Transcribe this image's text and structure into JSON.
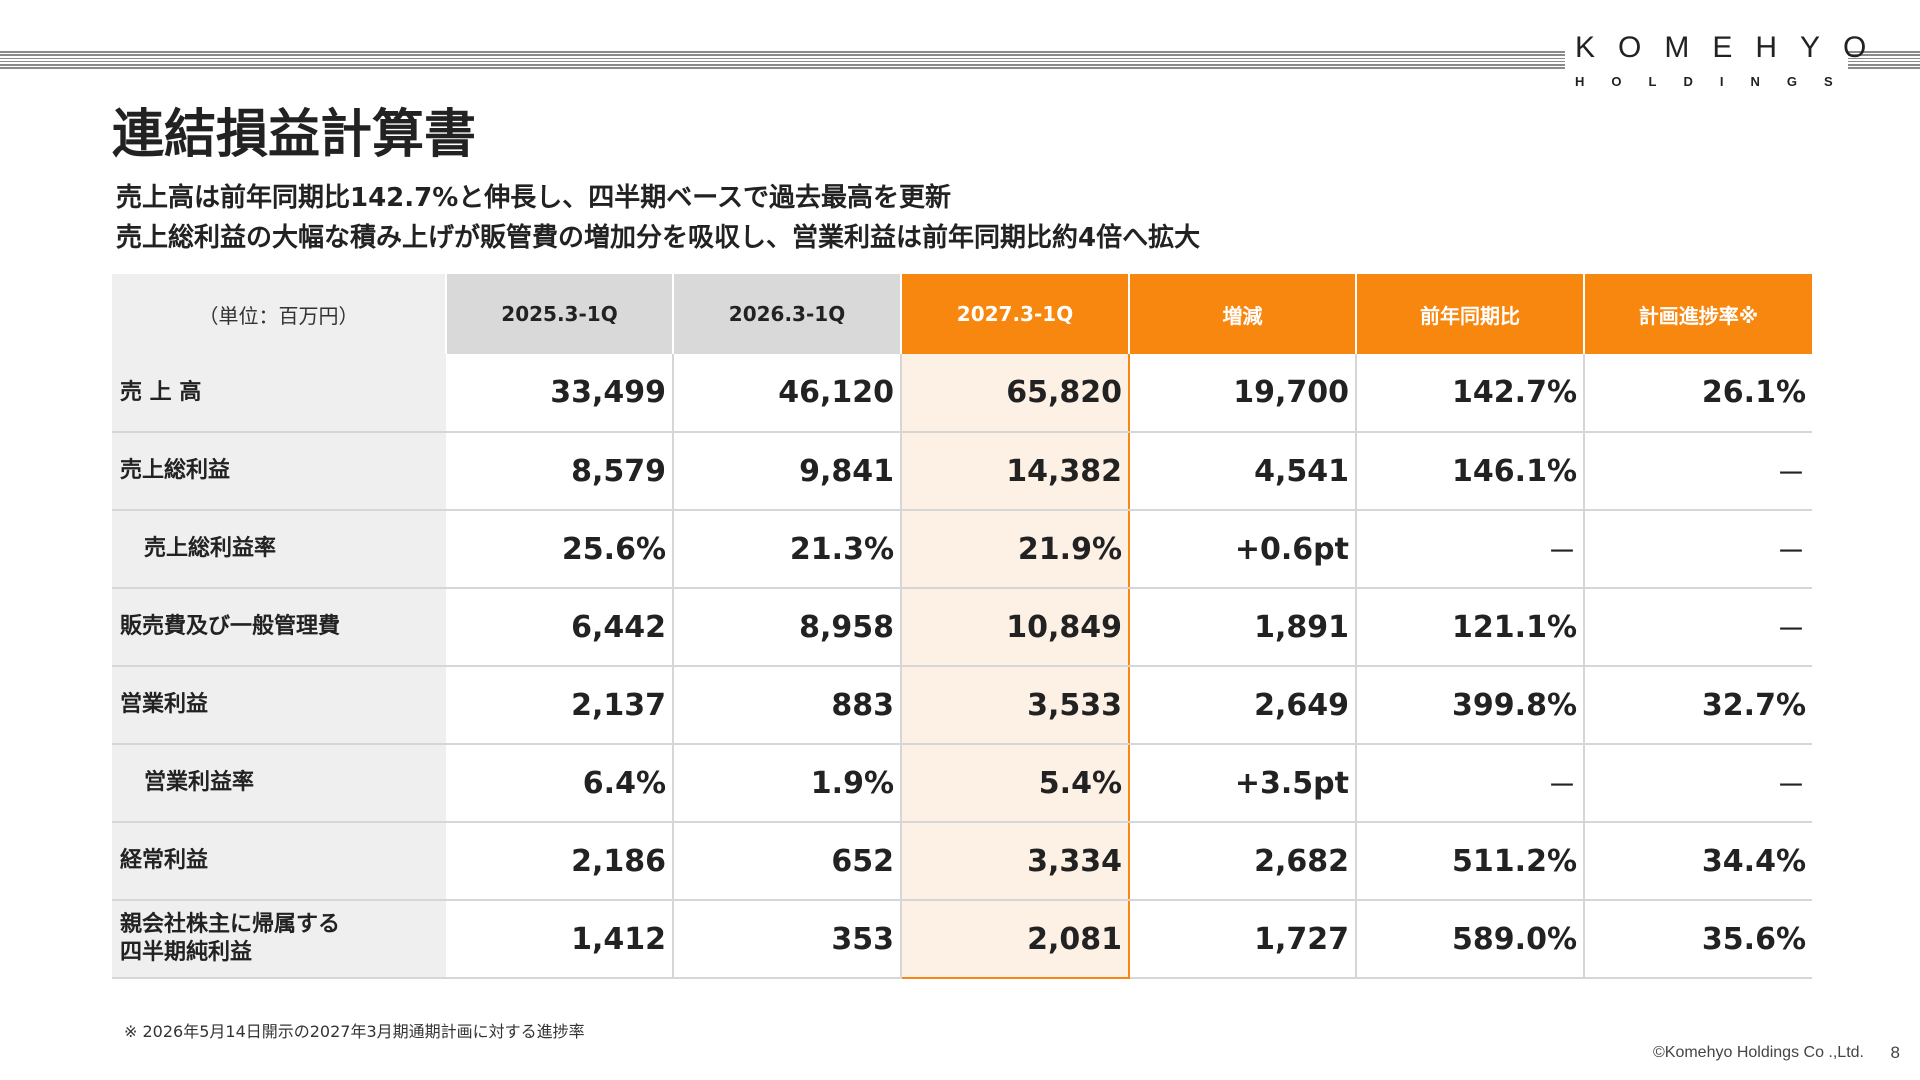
{
  "logo": {
    "main": "KOMEHYO",
    "sub": "HOLDINGS"
  },
  "title": "連結損益計算書",
  "subtitles": [
    "売上高は前年同期比142.7%と伸長し、四半期ベースで過去最高を更新",
    "売上総利益の大幅な積み上げが販管費の増加分を吸収し、営業利益は前年同期比約4倍へ拡大"
  ],
  "table": {
    "headers": [
      "（単位：百万円）",
      "2025.3-1Q",
      "2026.3-1Q",
      "2027.3-1Q",
      "増減",
      "前年同期比",
      "計画進捗率※"
    ],
    "rows": [
      {
        "label": "売 上 高",
        "values": [
          "33,499",
          "46,120",
          "65,820",
          "19,700",
          "142.7%",
          "26.1%"
        ]
      },
      {
        "label": "売上総利益",
        "values": [
          "8,579",
          "9,841",
          "14,382",
          "4,541",
          "146.1%",
          "－"
        ]
      },
      {
        "label": "売上総利益率",
        "values": [
          "25.6%",
          "21.3%",
          "21.9%",
          "+0.6pt",
          "－",
          "－"
        ]
      },
      {
        "label": "販売費及び一般管理費",
        "values": [
          "6,442",
          "8,958",
          "10,849",
          "1,891",
          "121.1%",
          "－"
        ]
      },
      {
        "label": "営業利益",
        "values": [
          "2,137",
          "883",
          "3,533",
          "2,649",
          "399.8%",
          "32.7%"
        ]
      },
      {
        "label": "営業利益率",
        "values": [
          "6.4%",
          "1.9%",
          "5.4%",
          "+3.5pt",
          "－",
          "－"
        ]
      },
      {
        "label": "経常利益",
        "values": [
          "2,186",
          "652",
          "3,334",
          "2,682",
          "511.2%",
          "34.4%"
        ]
      },
      {
        "label_line1": "親会社株主に帰属する",
        "label_line2": "四半期純利益",
        "values": [
          "1,412",
          "353",
          "2,081",
          "1,727",
          "589.0%",
          "35.6%"
        ]
      }
    ]
  },
  "footnote": "※ 2026年5月14日開示の2027年3月期通期計画に対する進捗率",
  "copyright": "©Komehyo Holdings Co .,Ltd.",
  "page_number": "8",
  "colors": {
    "accent": "#f7870f",
    "highlight_bg": "#fdf0e4",
    "label_bg": "#efefef",
    "header_gray": "#d9d9d9"
  }
}
